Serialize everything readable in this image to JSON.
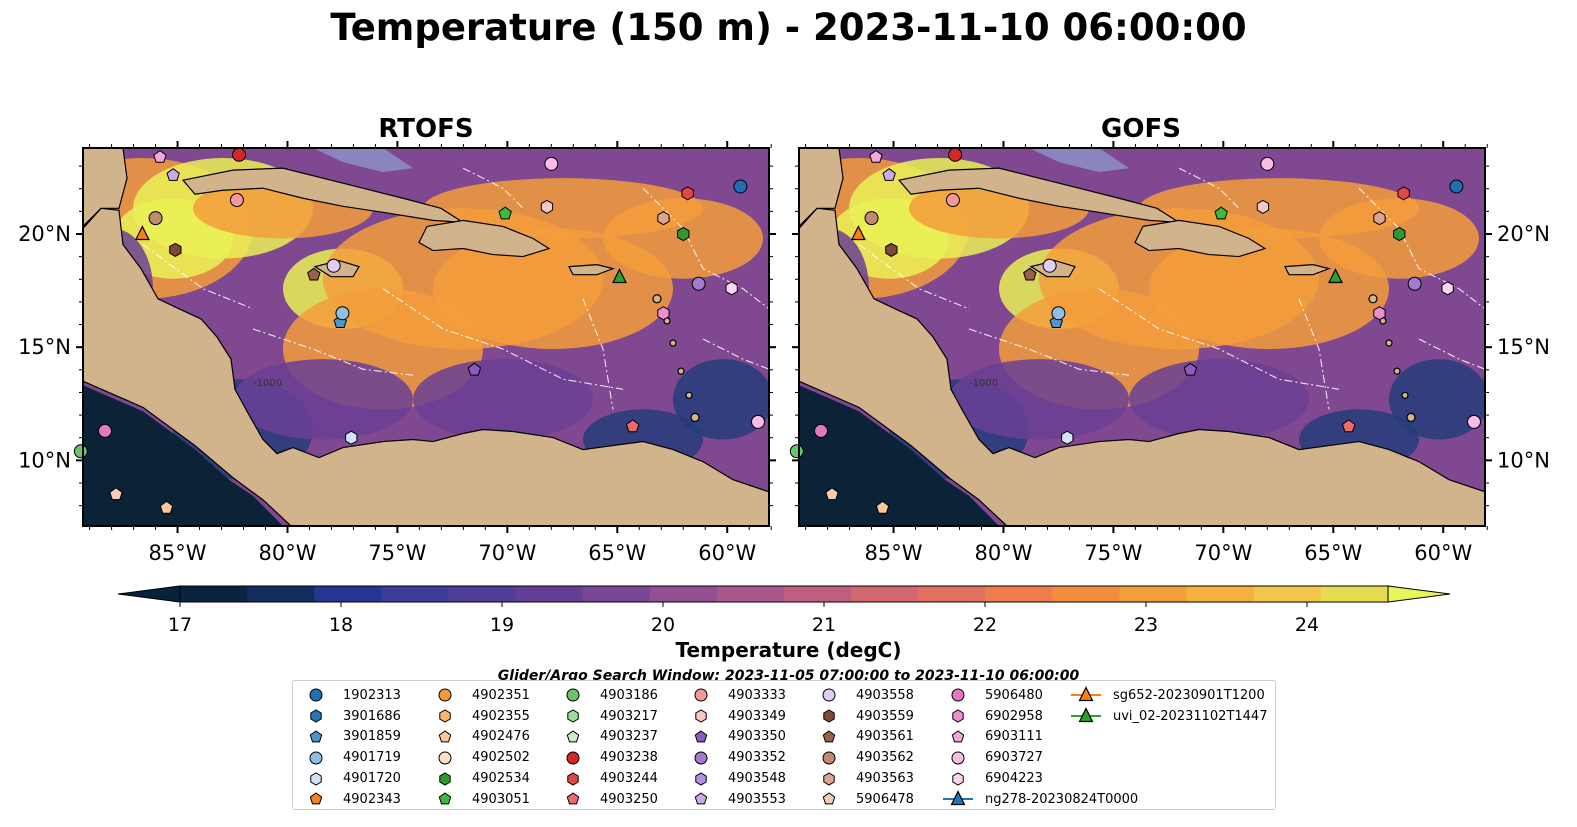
{
  "title": "Temperature (150 m) - 2023-11-10 06:00:00",
  "panels": [
    {
      "title": "RTOFS"
    },
    {
      "title": "GOFS"
    }
  ],
  "lon_ticks": [
    "85°W",
    "80°W",
    "75°W",
    "70°W",
    "65°W",
    "60°W"
  ],
  "lat_ticks": [
    "20°N",
    "15°N",
    "10°N"
  ],
  "bathy_labels": [
    "-100",
    "-1000",
    "-100"
  ],
  "colorbar": {
    "label": "Temperature (degC)",
    "ticks": [
      "17",
      "18",
      "19",
      "20",
      "21",
      "22",
      "23",
      "24"
    ],
    "colors": [
      "#0a2340",
      "#132e5e",
      "#243692",
      "#3c3a9a",
      "#4f3d98",
      "#633f96",
      "#7a4696",
      "#934f93",
      "#aa578b",
      "#bf5f80",
      "#d26772",
      "#e2705f",
      "#ef7c4c",
      "#f48c3f",
      "#f59d39",
      "#f5b23c",
      "#f3c84a",
      "#e6dc52"
    ],
    "low_color": "#07223a",
    "high_color": "#e7f55a"
  },
  "map_colors": {
    "land": "#d2b48c",
    "shelf": "#93b8e4",
    "ocean_pacific": "#0b2237",
    "warm": "#f39d3c",
    "hot": "#eaf157",
    "cool": "#6a3f95",
    "cold": "#243d7a"
  },
  "search_window": "Glider/Argo Search Window: 2023-11-05 07:00:00 to 2023-11-10 06:00:00",
  "legend": [
    {
      "label": "1902313",
      "marker": "circle",
      "color": "#1f6fb4"
    },
    {
      "label": "3901686",
      "marker": "hexagon",
      "color": "#2774b8"
    },
    {
      "label": "3901859",
      "marker": "pentagon",
      "color": "#4f95cc"
    },
    {
      "label": "4901719",
      "marker": "circle",
      "color": "#8fbfe4"
    },
    {
      "label": "4901720",
      "marker": "hexagon",
      "color": "#cfe5f7"
    },
    {
      "label": "4902343",
      "marker": "pentagon",
      "color": "#f58220"
    },
    {
      "label": "4902351",
      "marker": "circle",
      "color": "#f59a3c"
    },
    {
      "label": "4902355",
      "marker": "hexagon",
      "color": "#fbb46a"
    },
    {
      "label": "4902476",
      "marker": "pentagon",
      "color": "#fdc898"
    },
    {
      "label": "4902502",
      "marker": "circle",
      "color": "#fde1c4"
    },
    {
      "label": "4902534",
      "marker": "hexagon",
      "color": "#2c9a2c"
    },
    {
      "label": "4903051",
      "marker": "pentagon",
      "color": "#3dba3d"
    },
    {
      "label": "4903186",
      "marker": "circle",
      "color": "#6cc46c"
    },
    {
      "label": "4903217",
      "marker": "hexagon",
      "color": "#9cdc9c"
    },
    {
      "label": "4903237",
      "marker": "pentagon",
      "color": "#c8f0c8"
    },
    {
      "label": "4903238",
      "marker": "circle",
      "color": "#d62728"
    },
    {
      "label": "4903244",
      "marker": "hexagon",
      "color": "#e04848"
    },
    {
      "label": "4903250",
      "marker": "pentagon",
      "color": "#ee6a6a"
    },
    {
      "label": "4903333",
      "marker": "circle",
      "color": "#f29a9a"
    },
    {
      "label": "4903349",
      "marker": "hexagon",
      "color": "#f8c6c6"
    },
    {
      "label": "4903350",
      "marker": "pentagon",
      "color": "#8c5bbf"
    },
    {
      "label": "4903352",
      "marker": "circle",
      "color": "#a27ad0"
    },
    {
      "label": "4903548",
      "marker": "hexagon",
      "color": "#b090e0"
    },
    {
      "label": "4903553",
      "marker": "pentagon",
      "color": "#c8aae8"
    },
    {
      "label": "4903558",
      "marker": "circle",
      "color": "#e0cdf5"
    },
    {
      "label": "4903559",
      "marker": "hexagon",
      "color": "#7e4a34"
    },
    {
      "label": "4903561",
      "marker": "pentagon",
      "color": "#9a6048"
    },
    {
      "label": "4903562",
      "marker": "circle",
      "color": "#c08a70"
    },
    {
      "label": "4903563",
      "marker": "hexagon",
      "color": "#dba48c"
    },
    {
      "label": "5906478",
      "marker": "pentagon",
      "color": "#f4cdb8"
    },
    {
      "label": "5906480",
      "marker": "circle",
      "color": "#e377c2"
    },
    {
      "label": "6902958",
      "marker": "hexagon",
      "color": "#ec8fd0"
    },
    {
      "label": "6903111",
      "marker": "pentagon",
      "color": "#f2a6dc"
    },
    {
      "label": "6903727",
      "marker": "circle",
      "color": "#f7bde6"
    },
    {
      "label": "6904223",
      "marker": "hexagon",
      "color": "#fbd6f0"
    },
    {
      "label": "ng278-20230824T0000",
      "marker": "triangle-line",
      "color": "#1f77b4"
    },
    {
      "label": "sg652-20230901T1200",
      "marker": "triangle-line",
      "color": "#ff7f0e"
    },
    {
      "label": "uvi_02-20231102T1447",
      "marker": "triangle-line",
      "color": "#2ca02c"
    }
  ],
  "floats_on_map": [
    {
      "id": "6903111",
      "lon": -85.8,
      "lat": 23.4
    },
    {
      "id": "4903238",
      "lon": -82.2,
      "lat": 23.5
    },
    {
      "id": "4903553",
      "lon": -85.2,
      "lat": 22.6
    },
    {
      "id": "4903333",
      "lon": -82.3,
      "lat": 21.5
    },
    {
      "id": "4903562",
      "lon": -86.0,
      "lat": 20.7
    },
    {
      "id": "sg652-20230901T1200",
      "lon": -86.6,
      "lat": 20.0
    },
    {
      "id": "4903559",
      "lon": -85.1,
      "lat": 19.3
    },
    {
      "id": "4903561",
      "lon": -78.8,
      "lat": 18.2
    },
    {
      "id": "4903558",
      "lon": -77.9,
      "lat": 18.6
    },
    {
      "id": "3901859",
      "lon": -77.6,
      "lat": 16.1
    },
    {
      "id": "4901719",
      "lon": -77.5,
      "lat": 16.5
    },
    {
      "id": "4901720",
      "lon": -77.1,
      "lat": 11.0
    },
    {
      "id": "4903350",
      "lon": -71.5,
      "lat": 14.0
    },
    {
      "id": "4903051",
      "lon": -70.1,
      "lat": 20.9
    },
    {
      "id": "6903727",
      "lon": -68.0,
      "lat": 23.1
    },
    {
      "id": "4903349",
      "lon": -68.2,
      "lat": 21.2
    },
    {
      "id": "uvi_02-20231102T1447",
      "lon": -64.9,
      "lat": 18.1
    },
    {
      "id": "4903244",
      "lon": -61.8,
      "lat": 21.8
    },
    {
      "id": "4903563",
      "lon": -62.9,
      "lat": 20.7
    },
    {
      "id": "4902534",
      "lon": -62.0,
      "lat": 20.0
    },
    {
      "id": "4903352",
      "lon": -61.3,
      "lat": 17.8
    },
    {
      "id": "6904223",
      "lon": -59.8,
      "lat": 17.6
    },
    {
      "id": "6902958",
      "lon": -62.9,
      "lat": 16.5
    },
    {
      "id": "1902313",
      "lon": -59.4,
      "lat": 22.1
    },
    {
      "id": "4903250",
      "lon": -64.3,
      "lat": 11.5
    },
    {
      "id": "6903727",
      "lon": -58.6,
      "lat": 11.7
    },
    {
      "id": "5906480",
      "lon": -88.3,
      "lat": 11.3
    },
    {
      "id": "5906478",
      "lon": -87.8,
      "lat": 8.5
    },
    {
      "id": "4902476",
      "lon": -85.5,
      "lat": 7.9
    },
    {
      "id": "4903186",
      "lon": -89.4,
      "lat": 10.4
    }
  ]
}
